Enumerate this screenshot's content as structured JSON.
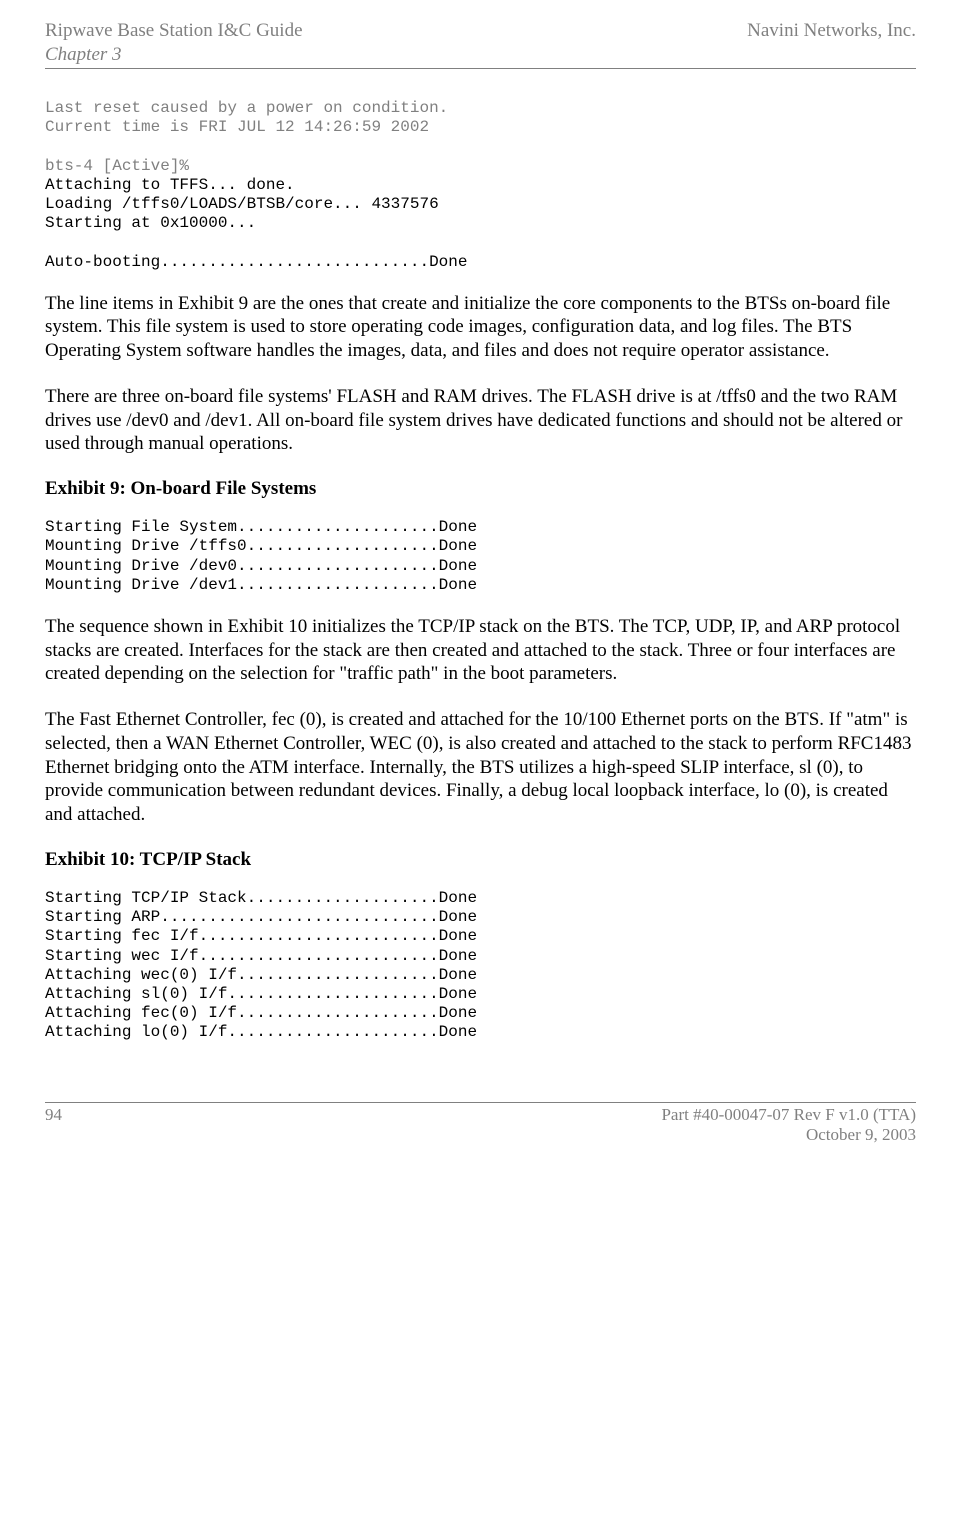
{
  "header": {
    "left": "Ripwave Base Station I&C Guide",
    "right": "Navini Networks, Inc.",
    "chapter": "Chapter 3"
  },
  "block1": {
    "gray": "Last reset caused by a power on condition.\nCurrent time is FRI JUL 12 14:26:59 2002\n\nbts-4 [Active]%",
    "black": "\nAttaching to TFFS... done.\nLoading /tffs0/LOADS/BTSB/core... 4337576\nStarting at 0x10000...\n\nAuto-booting............................Done"
  },
  "para1": "The line items in Exhibit 9 are the ones that create and initialize the core components to the BTSs on-board file system. This file system is used to store operating code images, configuration data, and log files. The BTS Operating System software handles the images, data, and files and does not require operator assistance.",
  "para2": "There are three on-board file systems' FLASH and RAM drives. The FLASH drive is at /tffs0 and the two RAM drives use /dev0 and /dev1. All on-board file system drives have dedicated functions and should not be altered or used through manual operations.",
  "exhibit9": {
    "title": "Exhibit 9:  On-board File Systems",
    "content": "Starting File System.....................Done\nMounting Drive /tffs0....................Done\nMounting Drive /dev0.....................Done\nMounting Drive /dev1.....................Done"
  },
  "para3": "The sequence shown in Exhibit 10 initializes the TCP/IP stack on the BTS. The TCP, UDP, IP, and ARP protocol stacks are created. Interfaces for the stack are then created and attached to the stack. Three or four interfaces are created depending on the selection for \"traffic path\" in the boot parameters.",
  "para4": "The Fast Ethernet Controller, fec (0), is created and attached for the 10/100 Ethernet ports on the BTS. If \"atm\" is selected, then a WAN Ethernet Controller, WEC (0), is also created and attached to the stack to perform RFC1483 Ethernet bridging onto the ATM interface. Internally, the BTS utilizes a high-speed SLIP interface, sl (0), to provide communication between redundant devices. Finally, a debug local loopback interface, lo (0), is created and attached.",
  "exhibit10": {
    "title": "Exhibit 10:  TCP/IP Stack",
    "content": "Starting TCP/IP Stack....................Done\nStarting ARP.............................Done\nStarting fec I/f.........................Done\nStarting wec I/f.........................Done\nAttaching wec(0) I/f.....................Done\nAttaching sl(0) I/f......................Done\nAttaching fec(0) I/f.....................Done\nAttaching lo(0) I/f......................Done"
  },
  "footer": {
    "page": "94",
    "part": "Part #40-00047-07 Rev F v1.0 (TTA)",
    "date": "October 9, 2003"
  }
}
